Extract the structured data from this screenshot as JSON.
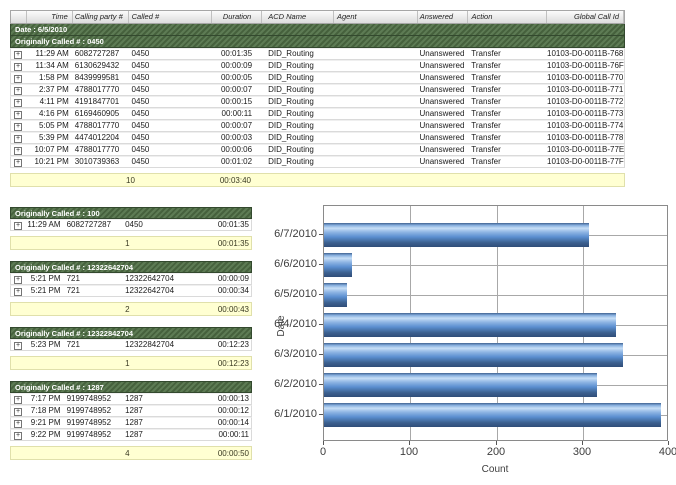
{
  "report": {
    "columns": [
      "",
      "Time",
      "Calling party #",
      "Called #",
      "Duration",
      "ACD Name",
      "Agent",
      "Answered",
      "Action",
      "Global Call Id"
    ],
    "date_label": "Date : 6/5/2010",
    "expand_icon": "+",
    "groups": [
      {
        "header": "Originally Called # : 0450",
        "rows": [
          {
            "time": "11:29 AM",
            "calling": "6082727287",
            "called": "0450",
            "duration": "00:01:35",
            "acd": "DID_Routing",
            "agent": "",
            "answered": "Unanswered",
            "action": "Transfer",
            "global_id": "10103-D0-0011B-768"
          },
          {
            "time": "11:34 AM",
            "calling": "6130629432",
            "called": "0450",
            "duration": "00:00:09",
            "acd": "DID_Routing",
            "agent": "",
            "answered": "Unanswered",
            "action": "Transfer",
            "global_id": "10103-D0-0011B-76F"
          },
          {
            "time": "1:58 PM",
            "calling": "8439999581",
            "called": "0450",
            "duration": "00:00:05",
            "acd": "DID_Routing",
            "agent": "",
            "answered": "Unanswered",
            "action": "Transfer",
            "global_id": "10103-D0-0011B-770"
          },
          {
            "time": "2:37 PM",
            "calling": "4788017770",
            "called": "0450",
            "duration": "00:00:07",
            "acd": "DID_Routing",
            "agent": "",
            "answered": "Unanswered",
            "action": "Transfer",
            "global_id": "10103-D0-0011B-771"
          },
          {
            "time": "4:11 PM",
            "calling": "4191847701",
            "called": "0450",
            "duration": "00:00:15",
            "acd": "DID_Routing",
            "agent": "",
            "answered": "Unanswered",
            "action": "Transfer",
            "global_id": "10103-D0-0011B-772"
          },
          {
            "time": "4:16 PM",
            "calling": "6169460905",
            "called": "0450",
            "duration": "00:00:11",
            "acd": "DID_Routing",
            "agent": "",
            "answered": "Unanswered",
            "action": "Transfer",
            "global_id": "10103-D0-0011B-773"
          },
          {
            "time": "5:05 PM",
            "calling": "4788017770",
            "called": "0450",
            "duration": "00:00:07",
            "acd": "DID_Routing",
            "agent": "",
            "answered": "Unanswered",
            "action": "Transfer",
            "global_id": "10103-D0-0011B-774"
          },
          {
            "time": "5:39 PM",
            "calling": "4474012204",
            "called": "0450",
            "duration": "00:00:03",
            "acd": "DID_Routing",
            "agent": "",
            "answered": "Unanswered",
            "action": "Transfer",
            "global_id": "10103-D0-0011B-778"
          },
          {
            "time": "10:07 PM",
            "calling": "4788017770",
            "called": "0450",
            "duration": "00:00:06",
            "acd": "DID_Routing",
            "agent": "",
            "answered": "Unanswered",
            "action": "Transfer",
            "global_id": "10103-D0-0011B-77E"
          },
          {
            "time": "10:21 PM",
            "calling": "3010739363",
            "called": "0450",
            "duration": "00:01:02",
            "acd": "DID_Routing",
            "agent": "",
            "answered": "Unanswered",
            "action": "Transfer",
            "global_id": "10103-D0-0011B-77F"
          }
        ],
        "summary": {
          "count": "10",
          "duration": "00:03:40"
        }
      },
      {
        "header": "Originally Called # : 100",
        "rows": [
          {
            "time": "11:29 AM",
            "calling": "6082727287",
            "called": "0450",
            "duration": "00:01:35"
          }
        ],
        "summary": {
          "count": "1",
          "duration": "00:01:35"
        }
      },
      {
        "header": "Originally Called # : 12322642704",
        "rows": [
          {
            "time": "5:21 PM",
            "calling": "721",
            "called": "12322642704",
            "duration": "00:00:09"
          },
          {
            "time": "5:21 PM",
            "calling": "721",
            "called": "12322642704",
            "duration": "00:00:34"
          }
        ],
        "summary": {
          "count": "2",
          "duration": "00:00:43"
        }
      },
      {
        "header": "Originally Called # : 12322842704",
        "rows": [
          {
            "time": "5:23 PM",
            "calling": "721",
            "called": "12322842704",
            "duration": "00:12:23"
          }
        ],
        "summary": {
          "count": "1",
          "duration": "00:12:23"
        }
      },
      {
        "header": "Originally Called # : 1287",
        "rows": [
          {
            "time": "7:17 PM",
            "calling": "9199748952",
            "called": "1287",
            "duration": "00:00:13"
          },
          {
            "time": "7:18 PM",
            "calling": "9199748952",
            "called": "1287",
            "duration": "00:00:12"
          },
          {
            "time": "9:21 PM",
            "calling": "9199748952",
            "called": "1287",
            "duration": "00:00:14"
          },
          {
            "time": "9:22 PM",
            "calling": "9199748952",
            "called": "1287",
            "duration": "00:00:11"
          }
        ],
        "summary": {
          "count": "4",
          "duration": "00:00:50"
        }
      }
    ]
  },
  "chart_data": {
    "type": "bar",
    "orientation": "horizontal",
    "categories": [
      "6/7/2010",
      "6/6/2010",
      "6/5/2010",
      "6/4/2010",
      "6/3/2010",
      "6/2/2010",
      "6/1/2010"
    ],
    "values": [
      307,
      32,
      27,
      339,
      347,
      316,
      391
    ],
    "title": "",
    "xlabel": "Count",
    "ylabel": "Date",
    "xlim": [
      0,
      400
    ],
    "xticks": [
      0,
      100,
      200,
      300,
      400
    ],
    "grid": true,
    "legend": "none"
  },
  "colors": {
    "band_green": "#46613d",
    "band_green_light": "#5d7b54",
    "summary_bg": "#ffffd2",
    "bar_blue": "#5b8fd0",
    "bar_blue_dark": "#2f4d79"
  }
}
